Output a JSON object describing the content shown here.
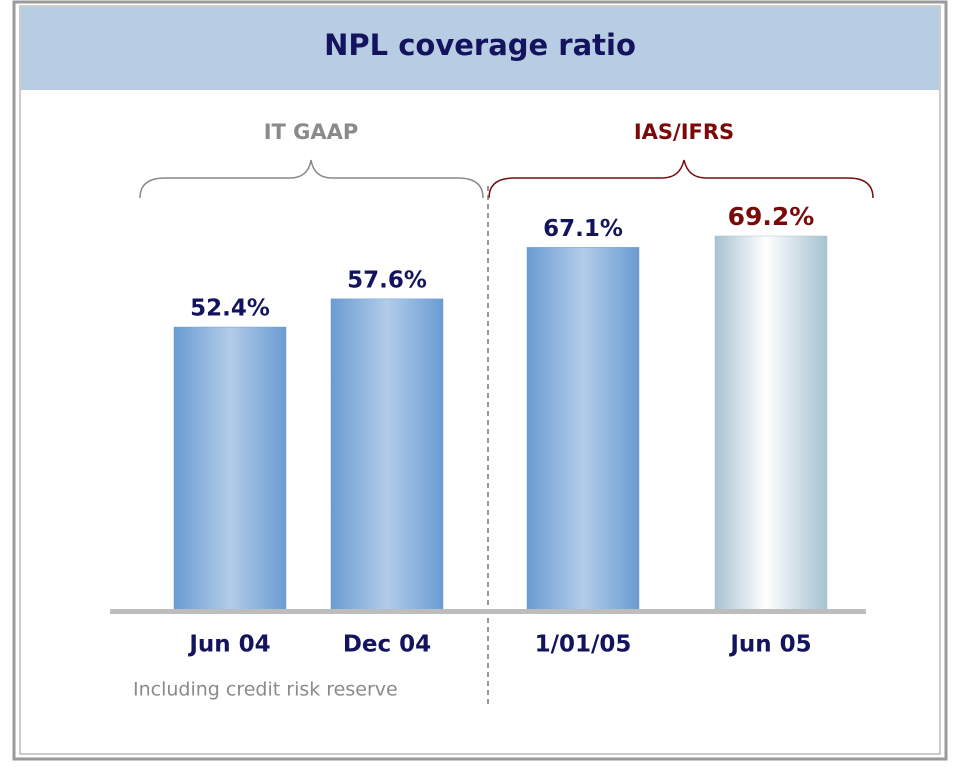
{
  "chart_data": {
    "type": "bar",
    "title": "NPL coverage ratio",
    "categories": [
      "Jun 04",
      "Dec 04",
      "1/01/05",
      "Jun 05"
    ],
    "values": [
      52.4,
      57.6,
      67.1,
      69.2
    ],
    "value_labels": [
      "52.4%",
      "57.6%",
      "67.1%",
      "69.2%"
    ],
    "colors": [
      "#6b9ed3",
      "#6b9ed3",
      "#6b9ed3",
      "#a6c2d2"
    ],
    "label_colors": [
      "#14145e",
      "#14145e",
      "#14145e",
      "#7a0a0a"
    ],
    "groups": [
      {
        "label": "IT GAAP",
        "color": "#8a8a8a"
      },
      {
        "label": "IAS/IFRS",
        "color": "#7a0a0a"
      }
    ],
    "note": "Including credit risk reserve"
  }
}
